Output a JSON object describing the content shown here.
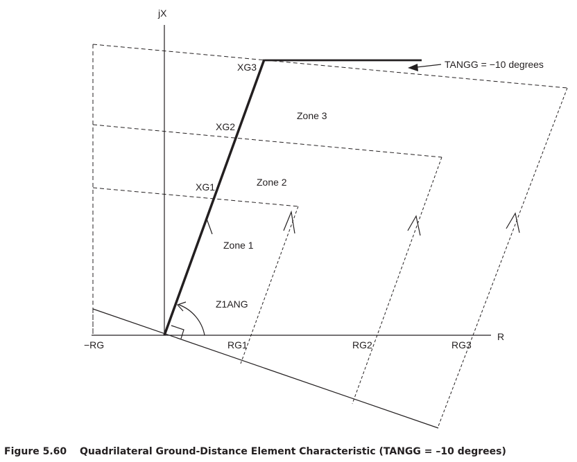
{
  "axes": {
    "x_label": "R",
    "y_label": "jX",
    "neg_rg_label": "−RG"
  },
  "reach_labels": {
    "rg1": "RG1",
    "rg2": "RG2",
    "rg3": "RG3",
    "xg1": "XG1",
    "xg2": "XG2",
    "xg3": "XG3"
  },
  "zones": {
    "zone1": "Zone 1",
    "zone2": "Zone 2",
    "zone3": "Zone 3"
  },
  "angle_label": "Z1ANG",
  "tangg_note": "TANGG = −10 degrees",
  "caption": {
    "number": "Figure 5.60",
    "title": "Quadrilateral Ground-Distance Element Characteristic (TANGG = –10 degrees)"
  }
}
